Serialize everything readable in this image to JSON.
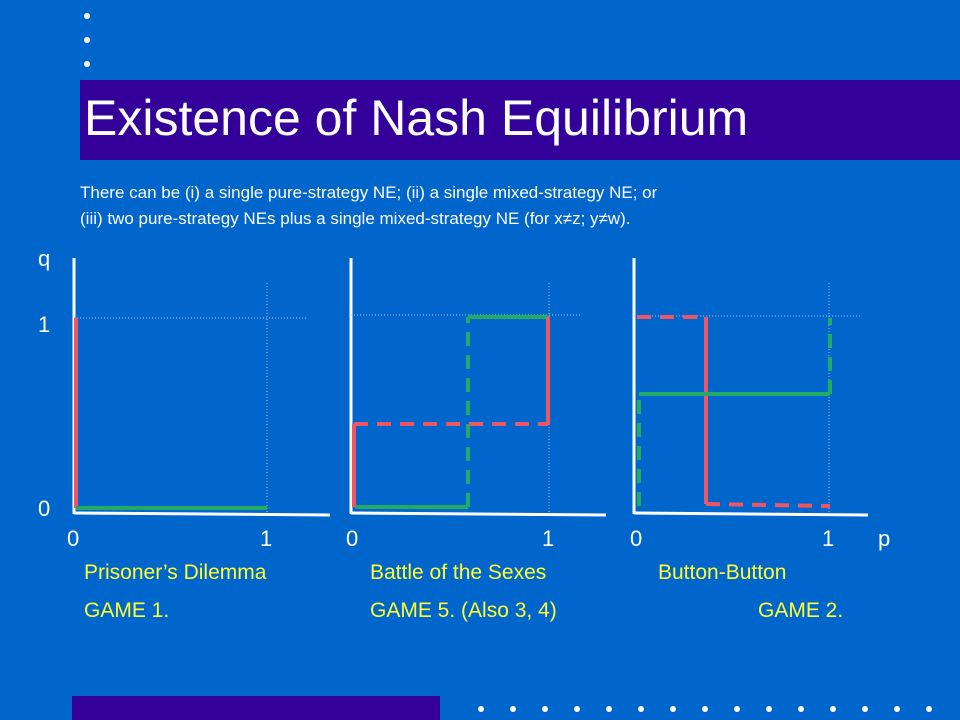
{
  "title": "Existence of Nash Equilibrium",
  "subtitle": {
    "line1": "There can be (i) a single pure-strategy NE; (ii) a single mixed-strategy NE; or",
    "line2": "(iii) two pure-strategy NEs plus a single mixed-strategy NE (for x≠z; y≠w)."
  },
  "axis_labels": {
    "y_name": "q",
    "y_top": "1",
    "y_bottom": "0",
    "x_zero": "0",
    "x_one": "1",
    "x_name": "p"
  },
  "games": [
    {
      "name": "Prisoner’s Dilemma",
      "game_label": "GAME 1."
    },
    {
      "name": "Battle of the Sexes",
      "game_label": "GAME 5. (Also 3, 4)"
    },
    {
      "name": "Button-Button",
      "game_label": "GAME 2."
    }
  ],
  "colors": {
    "background": "#0066cc",
    "title_bar": "#330099",
    "caption": "#ffff33",
    "red_response": "#ee5566",
    "green_response": "#22aa66"
  }
}
